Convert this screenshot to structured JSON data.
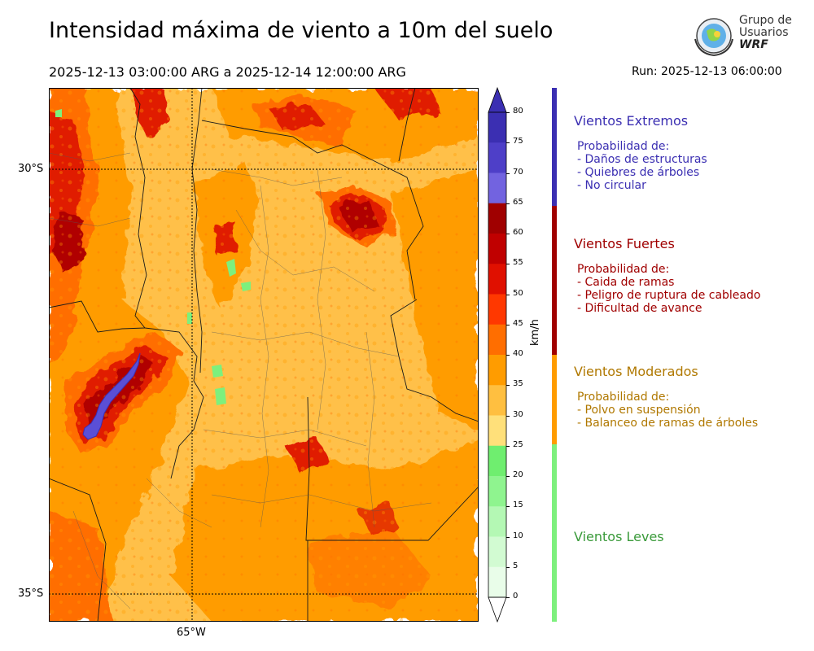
{
  "header": {
    "title": "Intensidad máxima de viento a 10m del suelo",
    "period": "2025-12-13 03:00:00 ARG  a  2025-12-14 12:00:00 ARG",
    "run": "Run: 2025-12-13 06:00:00"
  },
  "logo": {
    "line1": "Grupo de",
    "line2": "Usuarios",
    "line3": "WRF"
  },
  "map": {
    "lat_labels": [
      "30°S",
      "35°S"
    ],
    "lon_labels": [
      "65°W"
    ],
    "palette": {
      "light_orange": "#ffc04a",
      "orange": "#ff9c00",
      "dark_orange": "#ff6e00",
      "red": "#e01e00",
      "dark_red": "#b00000",
      "purple": "#5a4fd6",
      "green": "#7df07d",
      "yellow": "#ffe88a"
    }
  },
  "colorbar": {
    "unit": "km/h",
    "ticks": [
      "80",
      "75",
      "70",
      "65",
      "60",
      "55",
      "50",
      "45",
      "40",
      "35",
      "30",
      "25",
      "20",
      "15",
      "10",
      "5",
      "0"
    ],
    "colors": [
      "#3b2fb2",
      "#4e3fc8",
      "#7263e0",
      "#a00000",
      "#c00000",
      "#e01000",
      "#ff3800",
      "#ff6e00",
      "#ff9c00",
      "#ffbf40",
      "#ffe07a",
      "#6fee6f",
      "#8ff48f",
      "#b4f8b4",
      "#d2fbd2",
      "#e9fde9"
    ]
  },
  "legend": {
    "extremos": {
      "title": "Vientos Extremos",
      "color": "#3b2fb2",
      "lines": [
        "Probabilidad de:",
        "- Daños de estructuras",
        "- Quiebres de árboles",
        "- No circular"
      ]
    },
    "fuertes": {
      "title": "Vientos Fuertes",
      "color": "#a00000",
      "lines": [
        "Probabilidad de:",
        "- Caida de ramas",
        "- Peligro de ruptura de cableado",
        "- Dificultad de avance"
      ]
    },
    "moderados": {
      "title": "Vientos Moderados",
      "color": "#b07800",
      "lines": [
        "Probabilidad de:",
        "- Polvo en suspensión",
        "- Balanceo de ramas de árboles"
      ]
    },
    "leves": {
      "title": "Vientos Leves",
      "color": "#3a9a3a",
      "lines": []
    }
  }
}
